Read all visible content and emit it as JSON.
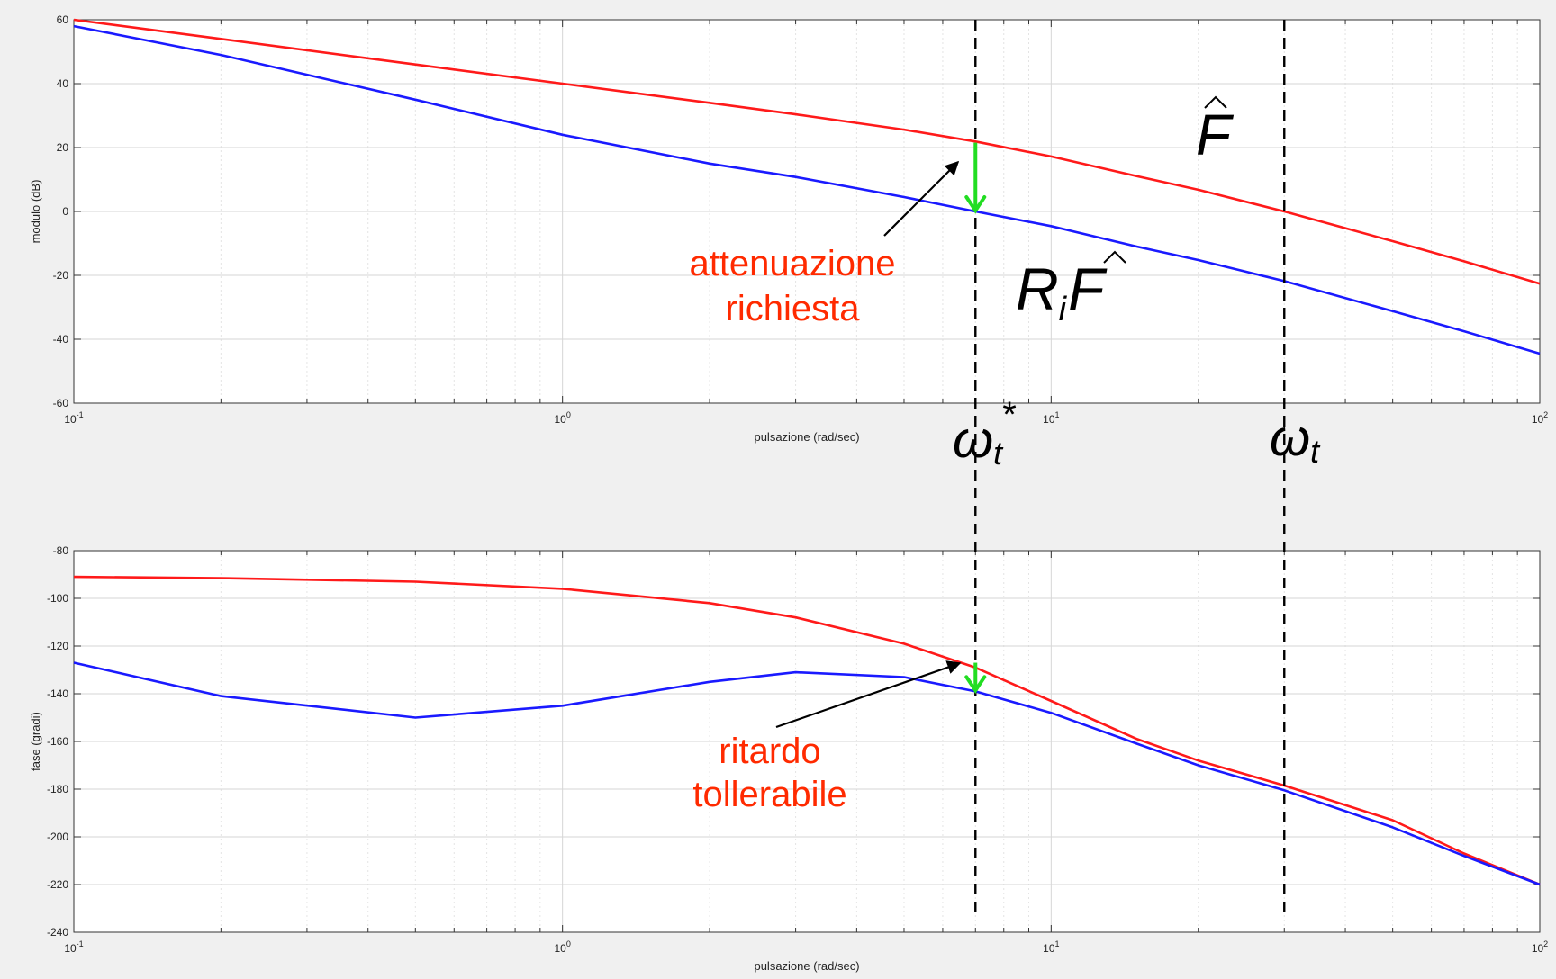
{
  "chart_data": [
    {
      "type": "line",
      "xscale": "log",
      "xlim": [
        0.1,
        100
      ],
      "ylim": [
        -60,
        60
      ],
      "yticks": [
        -60,
        -40,
        -20,
        0,
        20,
        40,
        60
      ],
      "xticks": [
        {
          "value": 0.1,
          "base": "10",
          "exp": "-1"
        },
        {
          "value": 1,
          "base": "10",
          "exp": "0"
        },
        {
          "value": 10,
          "base": "10",
          "exp": "1"
        },
        {
          "value": 100,
          "base": "10",
          "exp": "2"
        }
      ],
      "xlabel": "pulsazione (rad/sec)",
      "ylabel": "modulo (dB)",
      "grid": true,
      "series": [
        {
          "color": "#ff1a1a",
          "x": [
            0.1,
            0.2,
            0.5,
            1,
            2,
            3,
            5,
            7,
            10,
            15,
            20,
            30,
            50,
            70,
            100
          ],
          "values": [
            60,
            54,
            46,
            40,
            34,
            30.4,
            25.6,
            21.9,
            17.2,
            11,
            6.8,
            0,
            -9.3,
            -15.6,
            -22.6
          ]
        },
        {
          "color": "#1a1aff",
          "x": [
            0.1,
            0.2,
            0.5,
            1,
            2,
            3,
            5,
            7,
            10,
            15,
            20,
            30,
            50,
            70,
            100
          ],
          "values": [
            58,
            49,
            35,
            24,
            15,
            10.8,
            4.5,
            0,
            -4.6,
            -11,
            -15.2,
            -21.8,
            -31.2,
            -37.5,
            -44.5
          ]
        }
      ],
      "annotations": {
        "label_attenuation": [
          "attenuazione",
          "richiesta"
        ],
        "label_F": "F",
        "label_RiF_R": "R",
        "label_RiF_i": "i",
        "label_RiF_F": "F",
        "label_omega_star": "ω",
        "label_omega_star_sub": "t",
        "label_omega_star_sup": "*",
        "label_omega": "ω",
        "label_omega_sub": "t",
        "omega_star_x": 7,
        "omega_x": 30,
        "green_arrow_from": 21.5,
        "green_arrow_to": 0,
        "arrow_color": "#22dd22",
        "label_color": "#ff2a00"
      }
    },
    {
      "type": "line",
      "xscale": "log",
      "xlim": [
        0.1,
        100
      ],
      "ylim": [
        -240,
        -80
      ],
      "yticks": [
        -240,
        -220,
        -200,
        -180,
        -160,
        -140,
        -120,
        -100,
        -80
      ],
      "xticks": [
        {
          "value": 0.1,
          "base": "10",
          "exp": "-1"
        },
        {
          "value": 1,
          "base": "10",
          "exp": "0"
        },
        {
          "value": 10,
          "base": "10",
          "exp": "1"
        },
        {
          "value": 100,
          "base": "10",
          "exp": "2"
        }
      ],
      "xlabel": "pulsazione (rad/sec)",
      "ylabel": "fase (gradi)",
      "grid": true,
      "series": [
        {
          "color": "#ff1a1a",
          "x": [
            0.1,
            0.2,
            0.5,
            1,
            2,
            3,
            5,
            7,
            10,
            15,
            20,
            30,
            50,
            70,
            100
          ],
          "values": [
            -91,
            -91.5,
            -93,
            -96,
            -102,
            -108,
            -119,
            -129,
            -143,
            -159,
            -168,
            -178.5,
            -193,
            -207,
            -220
          ]
        },
        {
          "color": "#1a1aff",
          "x": [
            0.1,
            0.2,
            0.5,
            1,
            2,
            3,
            5,
            7,
            10,
            15,
            20,
            30,
            50,
            70,
            100
          ],
          "values": [
            -127,
            -141,
            -150,
            -145,
            -135,
            -131,
            -133,
            -139,
            -148,
            -161,
            -170,
            -180.5,
            -196,
            -208,
            -220
          ]
        }
      ],
      "annotations": {
        "label_delay": [
          "ritardo",
          "tollerabile"
        ],
        "omega_star_x": 7,
        "omega_x": 30,
        "green_arrow_from": -127,
        "green_arrow_to": -139,
        "arrow_color": "#22dd22",
        "label_color": "#ff2a00"
      }
    }
  ]
}
